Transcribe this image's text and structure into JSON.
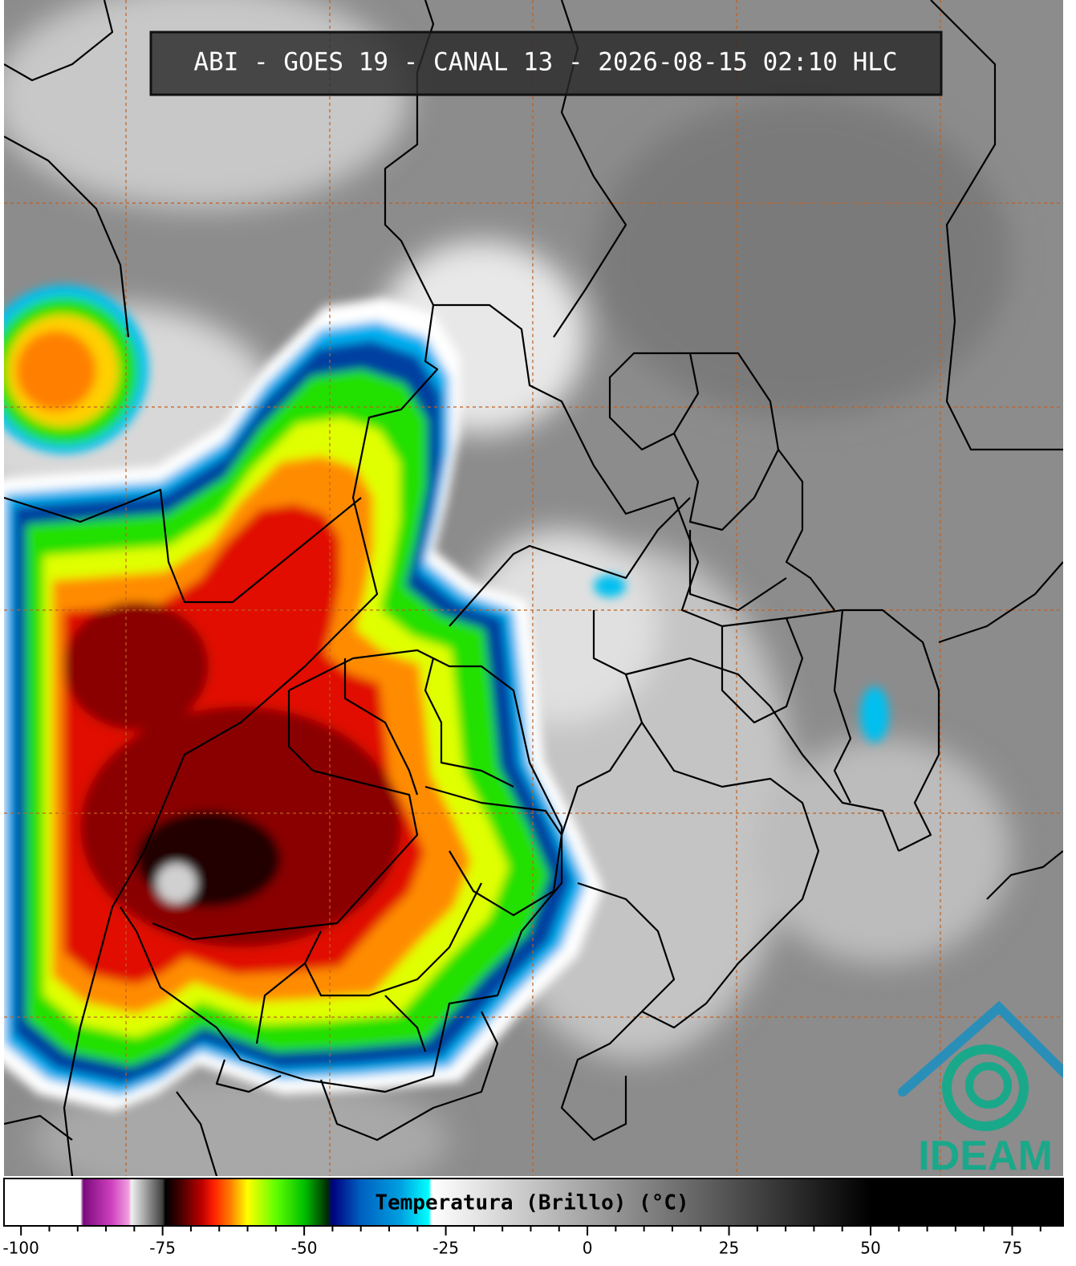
{
  "header": {
    "title": "ABI - GOES 19 - CANAL 13 - 2026-08-15 02:10 HLC"
  },
  "colorbar": {
    "label": "Temperatura (Brillo) (°C)",
    "xlim": [
      -103,
      84
    ],
    "xticks": [
      -100,
      -75,
      -50,
      -25,
      0,
      25,
      50,
      75
    ],
    "minor_xticks": [
      -95,
      -90,
      -85,
      -80,
      -70,
      -65,
      -60,
      -55,
      -45,
      -40,
      -35,
      -30,
      -20,
      -15,
      -10,
      -5,
      5,
      10,
      15,
      20,
      30,
      35,
      40,
      45,
      55,
      60,
      65,
      70,
      80
    ],
    "stops": [
      {
        "value": -103,
        "color": "#ffffff"
      },
      {
        "value": -89.5,
        "color": "#ffffff"
      },
      {
        "value": -89,
        "color": "#7a0a7a"
      },
      {
        "value": -84,
        "color": "#d040c0"
      },
      {
        "value": -81,
        "color": "#f0a0e0"
      },
      {
        "value": -80.5,
        "color": "#f0f0f0"
      },
      {
        "value": -75,
        "color": "#404040"
      },
      {
        "value": -74.5,
        "color": "#000000"
      },
      {
        "value": -72,
        "color": "#400000"
      },
      {
        "value": -68,
        "color": "#c00000"
      },
      {
        "value": -66,
        "color": "#ff2000"
      },
      {
        "value": -63,
        "color": "#ff8000"
      },
      {
        "value": -60,
        "color": "#ffff00"
      },
      {
        "value": -55,
        "color": "#60ff00"
      },
      {
        "value": -50,
        "color": "#00c000"
      },
      {
        "value": -46,
        "color": "#003000"
      },
      {
        "value": -45,
        "color": "#000080"
      },
      {
        "value": -40,
        "color": "#0060c0"
      },
      {
        "value": -33,
        "color": "#00a0e0"
      },
      {
        "value": -28,
        "color": "#00ffff"
      },
      {
        "value": -27.5,
        "color": "#ffffff"
      },
      {
        "value": 50,
        "color": "#000000"
      },
      {
        "value": 84,
        "color": "#000000"
      }
    ]
  },
  "logo": {
    "text": "IDEAM"
  }
}
